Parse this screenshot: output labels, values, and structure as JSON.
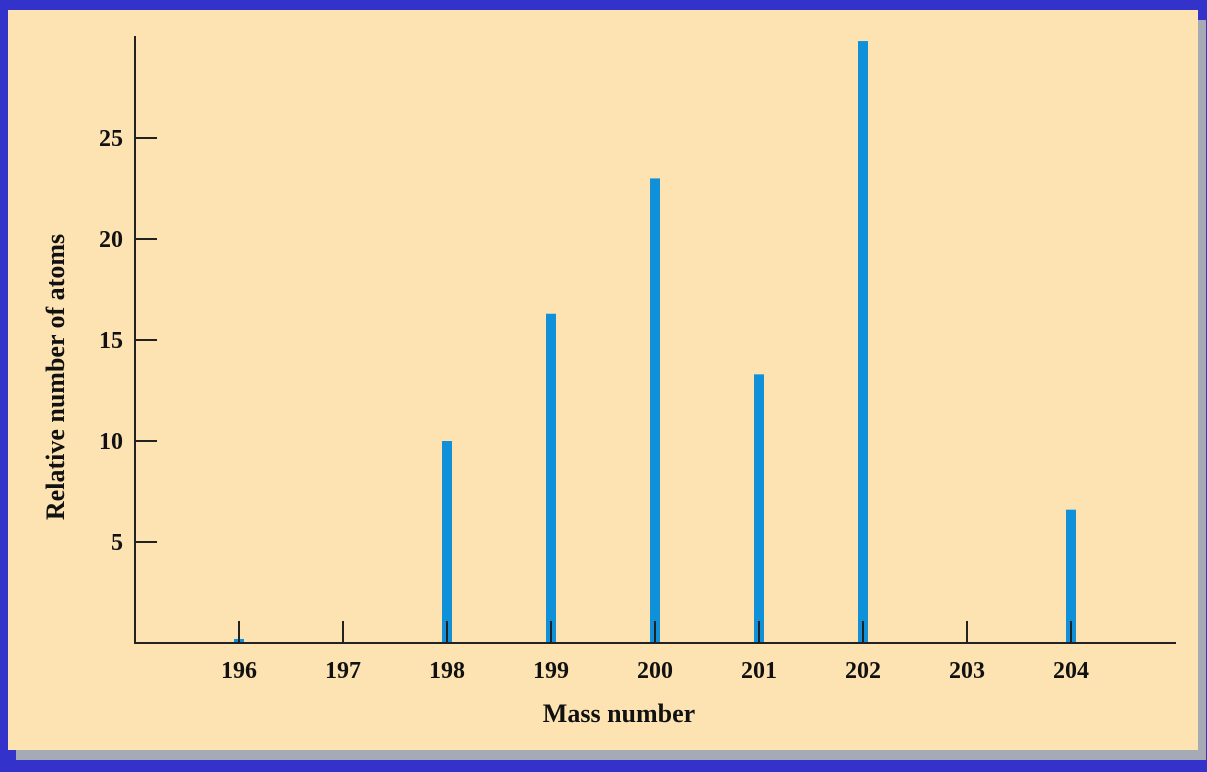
{
  "colors": {
    "background": "#3333cc",
    "panel": "#fde3b2",
    "bar": "#1090d8",
    "axis": "#222222"
  },
  "chart_data": {
    "type": "bar",
    "title": "",
    "xlabel": "Mass number",
    "ylabel": "Relative number of atoms",
    "categories": [
      "196",
      "197",
      "198",
      "199",
      "200",
      "201",
      "202",
      "203",
      "204"
    ],
    "values": [
      0.2,
      0,
      10,
      16.3,
      23,
      13.3,
      29.8,
      0,
      6.6
    ],
    "yticks": [
      5,
      10,
      15,
      20,
      25
    ],
    "ylim": [
      0,
      30
    ],
    "grid": false,
    "legend": "none"
  }
}
